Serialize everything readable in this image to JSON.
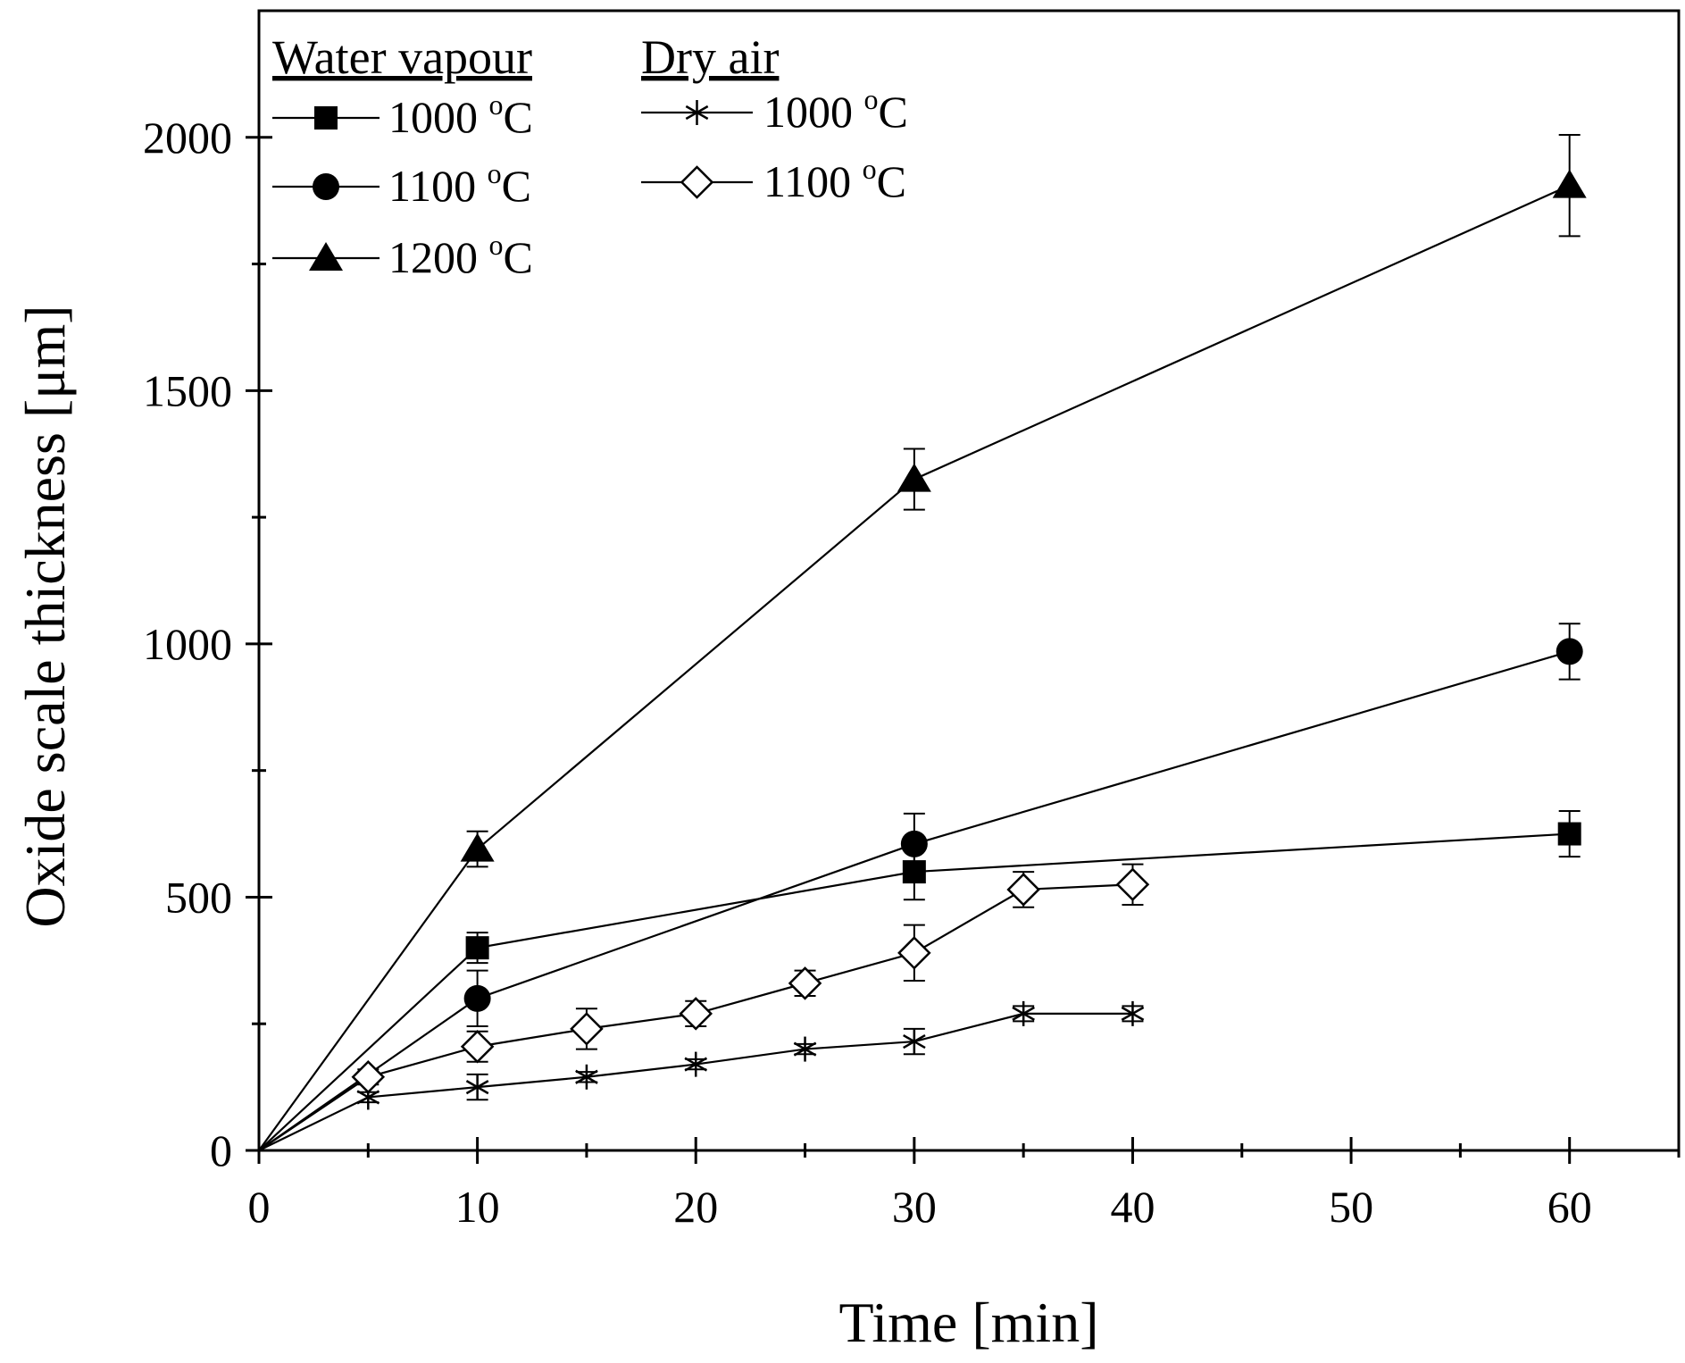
{
  "chart_data": {
    "type": "line",
    "xlabel": "Time [min]",
    "ylabel": "Oxide scale thickness [μm]",
    "xlim": [
      0,
      65
    ],
    "ylim": [
      0,
      2250
    ],
    "x_major_ticks": [
      0,
      10,
      20,
      30,
      40,
      50,
      60
    ],
    "x_tick_labels": [
      "0",
      "10",
      "20",
      "30",
      "40",
      "50",
      "60"
    ],
    "x_minor_ticks": [
      5,
      15,
      25,
      35,
      45,
      55,
      65
    ],
    "y_major_ticks": [
      0,
      500,
      1000,
      1500,
      2000
    ],
    "y_tick_labels": [
      "0",
      "500",
      "1000",
      "1500",
      "2000"
    ],
    "y_minor_ticks": [
      250,
      750,
      1250,
      1750
    ],
    "legend": {
      "placement": "top-left",
      "groups": [
        {
          "heading": "Water vapour",
          "series_indices": [
            0,
            1,
            2
          ]
        },
        {
          "heading": "Dry air",
          "series_indices": [
            3,
            4
          ]
        }
      ]
    },
    "series": [
      {
        "name": "1000",
        "unit": "C",
        "unit_sup": "o",
        "group": "Water vapour",
        "marker": "square-filled",
        "x": [
          0,
          10,
          30,
          60
        ],
        "y": [
          0,
          400,
          550,
          625
        ],
        "err": [
          0,
          30,
          55,
          45
        ]
      },
      {
        "name": "1100",
        "unit": "C",
        "unit_sup": "o",
        "group": "Water vapour",
        "marker": "circle-filled",
        "x": [
          0,
          10,
          30,
          60
        ],
        "y": [
          0,
          300,
          605,
          985
        ],
        "err": [
          0,
          55,
          60,
          55
        ]
      },
      {
        "name": "1200",
        "unit": "C",
        "unit_sup": "o",
        "group": "Water vapour",
        "marker": "triangle-filled",
        "x": [
          0,
          10,
          30,
          60
        ],
        "y": [
          0,
          595,
          1325,
          1905
        ],
        "err": [
          0,
          35,
          60,
          100
        ]
      },
      {
        "name": "1000",
        "unit": "C",
        "unit_sup": "o",
        "group": "Dry air",
        "marker": "star",
        "x": [
          0,
          5,
          10,
          15,
          20,
          25,
          30,
          35,
          40
        ],
        "y": [
          0,
          105,
          125,
          145,
          170,
          200,
          215,
          270,
          270
        ],
        "err": [
          0,
          10,
          25,
          10,
          10,
          10,
          25,
          15,
          15
        ]
      },
      {
        "name": "1100",
        "unit": "C",
        "unit_sup": "o",
        "group": "Dry air",
        "marker": "diamond-open",
        "x": [
          0,
          5,
          10,
          15,
          20,
          25,
          30,
          35,
          40
        ],
        "y": [
          0,
          145,
          205,
          240,
          270,
          330,
          390,
          515,
          525
        ],
        "err": [
          0,
          15,
          30,
          40,
          25,
          25,
          55,
          35,
          40
        ]
      }
    ]
  }
}
